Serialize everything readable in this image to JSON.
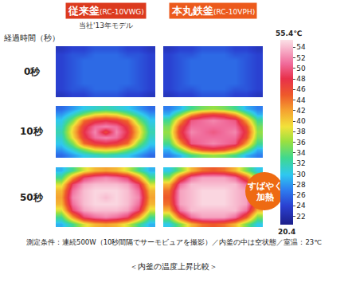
{
  "chart_data": {
    "type": "heatmap",
    "title": "＜内釜の温度上昇比較＞",
    "tick_labels": false,
    "row_axis_label": "経過時間（秒）",
    "rows": [
      "0秒",
      "10秒",
      "50秒"
    ],
    "columns": [
      {
        "name": "従来釜",
        "model": "(RC-10VWG)",
        "note": "当社'13年モデル",
        "color": "#dc3a1e"
      },
      {
        "name": "本丸鉄釜",
        "model": "(RC-10VPH)",
        "color": "#ec5a1c"
      }
    ],
    "cells": [
      [
        [
          [
            23,
            24,
            24,
            25,
            25,
            25,
            24,
            24,
            23
          ],
          [
            24,
            25,
            25,
            26,
            26,
            26,
            25,
            25,
            24
          ],
          [
            24,
            25,
            26,
            26,
            26,
            26,
            26,
            25,
            24
          ],
          [
            24,
            25,
            26,
            26,
            26,
            26,
            26,
            25,
            24
          ],
          [
            24,
            25,
            26,
            26,
            26,
            26,
            26,
            25,
            24
          ],
          [
            24,
            25,
            26,
            26,
            26,
            26,
            26,
            25,
            24
          ],
          [
            24,
            25,
            26,
            26,
            26,
            26,
            26,
            25,
            24
          ],
          [
            24,
            25,
            25,
            26,
            26,
            26,
            25,
            25,
            24
          ],
          [
            23,
            24,
            24,
            25,
            25,
            25,
            24,
            24,
            23
          ]
        ],
        [
          [
            23,
            24,
            24,
            25,
            25,
            25,
            24,
            24,
            23
          ],
          [
            24,
            25,
            25,
            26,
            26,
            26,
            25,
            25,
            24
          ],
          [
            24,
            25,
            26,
            26,
            26,
            26,
            26,
            25,
            24
          ],
          [
            24,
            25,
            26,
            26,
            26,
            26,
            26,
            25,
            24
          ],
          [
            24,
            25,
            26,
            26,
            26,
            26,
            26,
            25,
            24
          ],
          [
            24,
            25,
            26,
            26,
            26,
            26,
            26,
            25,
            24
          ],
          [
            24,
            25,
            26,
            26,
            26,
            26,
            26,
            25,
            24
          ],
          [
            24,
            25,
            25,
            26,
            26,
            26,
            25,
            25,
            24
          ],
          [
            23,
            24,
            24,
            25,
            25,
            25,
            24,
            24,
            23
          ]
        ]
      ],
      [
        [
          [
            26,
            28,
            30,
            31,
            32,
            31,
            30,
            28,
            26
          ],
          [
            28,
            31,
            35,
            39,
            40,
            39,
            35,
            31,
            28
          ],
          [
            30,
            35,
            44,
            47,
            48,
            47,
            44,
            35,
            30
          ],
          [
            31,
            39,
            47,
            51,
            52,
            51,
            47,
            39,
            31
          ],
          [
            32,
            40,
            48,
            52,
            46,
            52,
            48,
            40,
            32
          ],
          [
            31,
            39,
            47,
            51,
            52,
            51,
            47,
            39,
            31
          ],
          [
            30,
            35,
            44,
            47,
            48,
            47,
            44,
            35,
            30
          ],
          [
            28,
            31,
            35,
            39,
            40,
            39,
            35,
            31,
            28
          ],
          [
            26,
            28,
            30,
            31,
            32,
            31,
            30,
            28,
            26
          ]
        ],
        [
          [
            27,
            29,
            33,
            35,
            36,
            35,
            33,
            29,
            27
          ],
          [
            29,
            35,
            42,
            46,
            47,
            46,
            42,
            35,
            29
          ],
          [
            33,
            42,
            50,
            51,
            52,
            51,
            50,
            42,
            33
          ],
          [
            35,
            46,
            51,
            51,
            51,
            51,
            51,
            46,
            35
          ],
          [
            36,
            47,
            52,
            51,
            50,
            51,
            52,
            47,
            36
          ],
          [
            35,
            46,
            51,
            51,
            51,
            51,
            51,
            46,
            35
          ],
          [
            33,
            42,
            50,
            51,
            52,
            51,
            50,
            42,
            33
          ],
          [
            29,
            35,
            42,
            46,
            47,
            46,
            42,
            35,
            29
          ],
          [
            27,
            29,
            33,
            35,
            36,
            35,
            33,
            29,
            27
          ]
        ]
      ],
      [
        [
          [
            29,
            33,
            38,
            41,
            42,
            41,
            38,
            33,
            29
          ],
          [
            33,
            42,
            49,
            51,
            52,
            51,
            49,
            42,
            33
          ],
          [
            38,
            49,
            53,
            54,
            54,
            54,
            53,
            49,
            38
          ],
          [
            41,
            51,
            54,
            55,
            55,
            55,
            54,
            51,
            41
          ],
          [
            42,
            52,
            54,
            55,
            54,
            55,
            54,
            52,
            42
          ],
          [
            41,
            51,
            54,
            55,
            55,
            55,
            54,
            51,
            41
          ],
          [
            38,
            49,
            53,
            54,
            54,
            54,
            53,
            49,
            38
          ],
          [
            33,
            42,
            49,
            51,
            52,
            51,
            49,
            42,
            33
          ],
          [
            29,
            33,
            38,
            41,
            42,
            41,
            38,
            33,
            29
          ]
        ],
        [
          [
            30,
            35,
            41,
            44,
            45,
            44,
            41,
            35,
            30
          ],
          [
            35,
            45,
            51,
            53,
            53,
            53,
            51,
            45,
            35
          ],
          [
            41,
            51,
            54,
            54,
            54,
            54,
            54,
            51,
            41
          ],
          [
            44,
            53,
            54,
            55,
            55,
            55,
            54,
            53,
            44
          ],
          [
            45,
            53,
            54,
            55,
            55,
            55,
            54,
            53,
            45
          ],
          [
            44,
            53,
            54,
            55,
            55,
            55,
            54,
            53,
            44
          ],
          [
            41,
            51,
            54,
            54,
            54,
            54,
            54,
            51,
            41
          ],
          [
            35,
            45,
            51,
            53,
            53,
            53,
            51,
            45,
            35
          ],
          [
            30,
            35,
            41,
            44,
            45,
            44,
            41,
            35,
            30
          ]
        ]
      ]
    ],
    "colorbar": {
      "range": [
        20.4,
        55.4
      ],
      "ticks": [
        22,
        24,
        26,
        28,
        30,
        32,
        34,
        36,
        38,
        40,
        42,
        44,
        46,
        48,
        50,
        52,
        54
      ],
      "max_label": "55.4℃",
      "min_label": "20.4"
    },
    "annotations": [
      {
        "lines": [
          "すばやく",
          "加熱"
        ],
        "color": "#ee6a12"
      }
    ],
    "footnote": "測定条件：連続500W（10秒間隔でサーモビュアを撮影）／内釜の中は空状態／室温：23℃"
  }
}
